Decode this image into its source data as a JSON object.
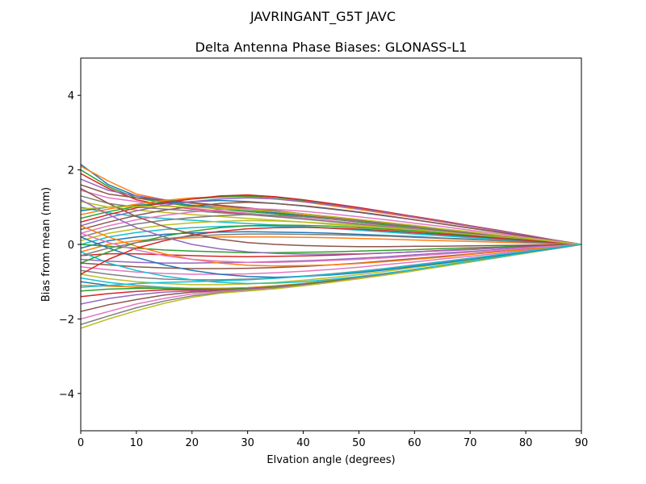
{
  "figure": {
    "suptitle": "JAVRINGANT_G5T  JAVC"
  },
  "chart_data": {
    "type": "line",
    "title": "Delta Antenna Phase Biases: GLONASS-L1",
    "xlabel": "Elvation angle (degrees)",
    "ylabel": "Bias from mean (mm)",
    "xlim": [
      0,
      90
    ],
    "ylim": [
      -5,
      5
    ],
    "xticks": [
      0,
      10,
      20,
      30,
      40,
      50,
      60,
      70,
      80,
      90
    ],
    "yticks": [
      -4,
      -2,
      0,
      2,
      4
    ],
    "xtick_labels": [
      "0",
      "10",
      "20",
      "30",
      "40",
      "50",
      "60",
      "70",
      "80",
      "90"
    ],
    "ytick_labels": [
      "−4",
      "−2",
      "0",
      "2",
      "4"
    ],
    "grid": false,
    "legend": "none",
    "colors": [
      "#1f77b4",
      "#ff7f0e",
      "#2ca02c",
      "#d62728",
      "#9467bd",
      "#8c564b",
      "#e377c2",
      "#7f7f7f",
      "#bcbd22",
      "#17becf"
    ],
    "x": [
      0,
      5,
      10,
      15,
      20,
      25,
      30,
      35,
      40,
      45,
      50,
      55,
      60,
      65,
      70,
      75,
      80,
      85,
      90
    ],
    "series": [
      {
        "values": [
          2.15,
          1.6,
          1.3,
          1.15,
          1.05,
          0.98,
          0.92,
          0.85,
          0.78,
          0.7,
          0.62,
          0.54,
          0.46,
          0.38,
          0.3,
          0.22,
          0.14,
          0.07,
          0
        ]
      },
      {
        "values": [
          2.1,
          1.7,
          1.35,
          1.2,
          1.1,
          1.02,
          0.95,
          0.88,
          0.8,
          0.72,
          0.64,
          0.56,
          0.47,
          0.39,
          0.31,
          0.23,
          0.15,
          0.07,
          0
        ]
      },
      {
        "values": [
          2.0,
          1.55,
          1.25,
          1.12,
          1.02,
          0.95,
          0.88,
          0.82,
          0.75,
          0.68,
          0.6,
          0.52,
          0.44,
          0.36,
          0.28,
          0.2,
          0.13,
          0.06,
          0
        ]
      },
      {
        "values": [
          1.9,
          1.5,
          1.2,
          1.05,
          0.95,
          0.88,
          0.82,
          0.76,
          0.7,
          0.63,
          0.56,
          0.49,
          0.42,
          0.34,
          0.27,
          0.19,
          0.12,
          0.06,
          0
        ]
      },
      {
        "values": [
          1.75,
          1.45,
          1.3,
          1.2,
          1.12,
          1.05,
          0.98,
          0.9,
          0.82,
          0.73,
          0.65,
          0.56,
          0.48,
          0.39,
          0.31,
          0.23,
          0.15,
          0.07,
          0
        ]
      },
      {
        "values": [
          1.6,
          1.35,
          1.25,
          1.18,
          1.12,
          1.05,
          0.98,
          0.9,
          0.82,
          0.74,
          0.66,
          0.57,
          0.48,
          0.4,
          0.31,
          0.23,
          0.15,
          0.07,
          0
        ]
      },
      {
        "values": [
          1.45,
          1.25,
          1.15,
          1.05,
          0.97,
          0.9,
          0.84,
          0.77,
          0.7,
          0.63,
          0.56,
          0.49,
          0.42,
          0.34,
          0.27,
          0.2,
          0.13,
          0.06,
          0
        ]
      },
      {
        "values": [
          1.3,
          1.1,
          1.0,
          0.95,
          0.9,
          0.85,
          0.8,
          0.74,
          0.68,
          0.61,
          0.54,
          0.47,
          0.4,
          0.33,
          0.26,
          0.19,
          0.12,
          0.06,
          0
        ]
      },
      {
        "values": [
          1.15,
          1.0,
          0.92,
          0.86,
          0.8,
          0.75,
          0.7,
          0.65,
          0.6,
          0.54,
          0.48,
          0.42,
          0.36,
          0.3,
          0.24,
          0.17,
          0.11,
          0.05,
          0
        ]
      },
      {
        "values": [
          1.0,
          0.85,
          0.75,
          0.7,
          0.65,
          0.6,
          0.56,
          0.52,
          0.48,
          0.43,
          0.38,
          0.33,
          0.28,
          0.23,
          0.18,
          0.13,
          0.09,
          0.04,
          0
        ]
      },
      {
        "values": [
          0.9,
          1.0,
          1.05,
          1.1,
          1.15,
          1.18,
          1.15,
          1.1,
          1.03,
          0.95,
          0.86,
          0.76,
          0.66,
          0.55,
          0.44,
          0.33,
          0.22,
          0.11,
          0
        ]
      },
      {
        "values": [
          0.8,
          0.95,
          1.08,
          1.18,
          1.25,
          1.28,
          1.28,
          1.22,
          1.14,
          1.04,
          0.94,
          0.83,
          0.72,
          0.6,
          0.48,
          0.36,
          0.24,
          0.12,
          0
        ]
      },
      {
        "values": [
          0.7,
          0.88,
          1.02,
          1.14,
          1.22,
          1.27,
          1.3,
          1.26,
          1.18,
          1.08,
          0.97,
          0.86,
          0.74,
          0.62,
          0.5,
          0.37,
          0.25,
          0.12,
          0
        ]
      },
      {
        "values": [
          0.6,
          0.8,
          0.98,
          1.12,
          1.22,
          1.3,
          1.33,
          1.28,
          1.2,
          1.1,
          0.99,
          0.87,
          0.75,
          0.63,
          0.5,
          0.38,
          0.25,
          0.12,
          0
        ]
      },
      {
        "values": [
          0.5,
          0.72,
          0.9,
          1.05,
          1.15,
          1.22,
          1.25,
          1.22,
          1.15,
          1.06,
          0.96,
          0.85,
          0.73,
          0.61,
          0.49,
          0.37,
          0.24,
          0.12,
          0
        ]
      },
      {
        "values": [
          0.4,
          0.6,
          0.78,
          0.92,
          1.02,
          1.1,
          1.13,
          1.1,
          1.04,
          0.96,
          0.87,
          0.77,
          0.66,
          0.55,
          0.44,
          0.33,
          0.22,
          0.11,
          0
        ]
      },
      {
        "values": [
          0.3,
          0.5,
          0.66,
          0.78,
          0.87,
          0.93,
          0.96,
          0.94,
          0.89,
          0.82,
          0.74,
          0.66,
          0.57,
          0.48,
          0.38,
          0.29,
          0.19,
          0.1,
          0
        ]
      },
      {
        "values": [
          0.2,
          0.4,
          0.55,
          0.65,
          0.72,
          0.77,
          0.8,
          0.78,
          0.74,
          0.68,
          0.62,
          0.55,
          0.47,
          0.4,
          0.32,
          0.24,
          0.16,
          0.08,
          0
        ]
      },
      {
        "values": [
          0.1,
          0.3,
          0.42,
          0.52,
          0.58,
          0.62,
          0.64,
          0.63,
          0.6,
          0.56,
          0.51,
          0.45,
          0.39,
          0.33,
          0.26,
          0.2,
          0.13,
          0.07,
          0
        ]
      },
      {
        "values": [
          0.0,
          0.2,
          0.32,
          0.4,
          0.45,
          0.48,
          0.5,
          0.49,
          0.47,
          0.44,
          0.4,
          0.35,
          0.3,
          0.25,
          0.2,
          0.15,
          0.1,
          0.05,
          0
        ]
      },
      {
        "values": [
          -0.1,
          0.1,
          0.2,
          0.27,
          0.31,
          0.33,
          0.34,
          0.33,
          0.32,
          0.3,
          0.27,
          0.24,
          0.21,
          0.17,
          0.14,
          0.1,
          0.07,
          0.03,
          0
        ]
      },
      {
        "values": [
          -0.2,
          0.0,
          0.1,
          0.15,
          0.18,
          0.2,
          0.2,
          0.2,
          0.19,
          0.18,
          0.16,
          0.14,
          0.12,
          0.1,
          0.08,
          0.06,
          0.04,
          0.02,
          0
        ]
      },
      {
        "values": [
          0.0,
          -0.05,
          -0.1,
          -0.15,
          -0.18,
          -0.2,
          -0.22,
          -0.22,
          -0.21,
          -0.2,
          -0.18,
          -0.16,
          -0.14,
          -0.11,
          -0.09,
          -0.07,
          -0.04,
          -0.02,
          0
        ]
      },
      {
        "values": [
          -0.3,
          -0.25,
          -0.25,
          -0.28,
          -0.3,
          -0.32,
          -0.33,
          -0.32,
          -0.31,
          -0.29,
          -0.26,
          -0.23,
          -0.2,
          -0.16,
          -0.13,
          -0.1,
          -0.06,
          -0.03,
          0
        ]
      },
      {
        "values": [
          -0.4,
          -0.45,
          -0.48,
          -0.5,
          -0.5,
          -0.49,
          -0.48,
          -0.46,
          -0.44,
          -0.41,
          -0.37,
          -0.33,
          -0.28,
          -0.23,
          -0.19,
          -0.14,
          -0.09,
          -0.05,
          0
        ]
      },
      {
        "values": [
          -0.5,
          -0.55,
          -0.6,
          -0.63,
          -0.65,
          -0.65,
          -0.64,
          -0.62,
          -0.59,
          -0.55,
          -0.5,
          -0.44,
          -0.38,
          -0.32,
          -0.26,
          -0.19,
          -0.13,
          -0.06,
          0
        ]
      },
      {
        "values": [
          -0.6,
          -0.68,
          -0.74,
          -0.78,
          -0.8,
          -0.8,
          -0.79,
          -0.76,
          -0.72,
          -0.67,
          -0.61,
          -0.54,
          -0.47,
          -0.39,
          -0.32,
          -0.24,
          -0.16,
          -0.08,
          0
        ]
      },
      {
        "values": [
          -0.7,
          -0.8,
          -0.88,
          -0.93,
          -0.95,
          -0.95,
          -0.93,
          -0.9,
          -0.85,
          -0.79,
          -0.72,
          -0.64,
          -0.55,
          -0.46,
          -0.37,
          -0.28,
          -0.19,
          -0.09,
          0
        ]
      },
      {
        "values": [
          -0.8,
          -0.92,
          -1.0,
          -1.05,
          -1.08,
          -1.08,
          -1.06,
          -1.02,
          -0.96,
          -0.89,
          -0.81,
          -0.72,
          -0.62,
          -0.52,
          -0.42,
          -0.32,
          -0.21,
          -0.1,
          0
        ]
      },
      {
        "values": [
          -0.9,
          -1.02,
          -1.1,
          -1.15,
          -1.18,
          -1.18,
          -1.16,
          -1.12,
          -1.05,
          -0.97,
          -0.88,
          -0.78,
          -0.68,
          -0.57,
          -0.46,
          -0.34,
          -0.23,
          -0.11,
          0
        ]
      },
      {
        "values": [
          -1.0,
          -1.1,
          -1.15,
          -1.18,
          -1.2,
          -1.2,
          -1.18,
          -1.13,
          -1.06,
          -0.98,
          -0.89,
          -0.79,
          -0.68,
          -0.57,
          -0.46,
          -0.35,
          -0.23,
          -0.11,
          0
        ]
      },
      {
        "values": [
          -1.1,
          -1.12,
          -1.14,
          -1.16,
          -1.18,
          -1.18,
          -1.16,
          -1.11,
          -1.05,
          -0.97,
          -0.88,
          -0.78,
          -0.68,
          -0.57,
          -0.45,
          -0.34,
          -0.23,
          -0.11,
          0
        ]
      },
      {
        "values": [
          -1.25,
          -1.2,
          -1.18,
          -1.18,
          -1.19,
          -1.2,
          -1.18,
          -1.13,
          -1.06,
          -0.98,
          -0.89,
          -0.79,
          -0.68,
          -0.57,
          -0.46,
          -0.34,
          -0.23,
          -0.11,
          0
        ]
      },
      {
        "values": [
          -1.4,
          -1.32,
          -1.26,
          -1.22,
          -1.22,
          -1.22,
          -1.2,
          -1.15,
          -1.08,
          -1.0,
          -0.9,
          -0.8,
          -0.69,
          -0.58,
          -0.46,
          -0.35,
          -0.23,
          -0.12,
          0
        ]
      },
      {
        "values": [
          -1.6,
          -1.45,
          -1.35,
          -1.28,
          -1.25,
          -1.23,
          -1.2,
          -1.15,
          -1.08,
          -1.0,
          -0.9,
          -0.8,
          -0.69,
          -0.58,
          -0.46,
          -0.35,
          -0.23,
          -0.12,
          0
        ]
      },
      {
        "values": [
          -1.8,
          -1.62,
          -1.48,
          -1.36,
          -1.28,
          -1.24,
          -1.21,
          -1.16,
          -1.09,
          -1.0,
          -0.91,
          -0.8,
          -0.69,
          -0.58,
          -0.47,
          -0.35,
          -0.23,
          -0.12,
          0
        ]
      },
      {
        "values": [
          -2.0,
          -1.8,
          -1.6,
          -1.45,
          -1.33,
          -1.26,
          -1.22,
          -1.17,
          -1.1,
          -1.01,
          -0.91,
          -0.81,
          -0.7,
          -0.58,
          -0.47,
          -0.35,
          -0.23,
          -0.12,
          0
        ]
      },
      {
        "values": [
          -2.15,
          -1.92,
          -1.7,
          -1.52,
          -1.38,
          -1.29,
          -1.24,
          -1.18,
          -1.1,
          -1.01,
          -0.92,
          -0.81,
          -0.7,
          -0.59,
          -0.47,
          -0.35,
          -0.23,
          -0.12,
          0
        ]
      },
      {
        "values": [
          -2.25,
          -2.0,
          -1.78,
          -1.58,
          -1.42,
          -1.31,
          -1.25,
          -1.19,
          -1.11,
          -1.02,
          -0.92,
          -0.82,
          -0.71,
          -0.59,
          -0.47,
          -0.35,
          -0.24,
          -0.12,
          0
        ]
      },
      {
        "values": [
          -0.2,
          -0.5,
          -0.7,
          -0.85,
          -0.95,
          -1.02,
          -1.05,
          -1.04,
          -1.0,
          -0.94,
          -0.86,
          -0.77,
          -0.67,
          -0.56,
          -0.45,
          -0.34,
          -0.22,
          -0.11,
          0
        ]
      },
      {
        "values": [
          0.2,
          -0.1,
          -0.35,
          -0.55,
          -0.7,
          -0.8,
          -0.86,
          -0.88,
          -0.86,
          -0.82,
          -0.76,
          -0.68,
          -0.59,
          -0.5,
          -0.4,
          -0.3,
          -0.2,
          -0.1,
          0
        ]
      },
      {
        "values": [
          0.5,
          0.2,
          -0.05,
          -0.25,
          -0.4,
          -0.5,
          -0.56,
          -0.58,
          -0.57,
          -0.55,
          -0.51,
          -0.46,
          -0.4,
          -0.34,
          -0.27,
          -0.2,
          -0.14,
          -0.07,
          0
        ]
      },
      {
        "values": [
          -0.5,
          -0.2,
          0.05,
          0.22,
          0.35,
          0.45,
          0.5,
          0.52,
          0.51,
          0.49,
          0.45,
          0.41,
          0.36,
          0.3,
          0.24,
          0.18,
          0.12,
          0.06,
          0
        ]
      },
      {
        "values": [
          -0.8,
          -0.4,
          -0.1,
          0.1,
          0.25,
          0.35,
          0.42,
          0.45,
          0.46,
          0.44,
          0.41,
          0.37,
          0.32,
          0.27,
          0.22,
          0.16,
          0.11,
          0.05,
          0
        ]
      },
      {
        "values": [
          1.2,
          0.8,
          0.45,
          0.2,
          0.0,
          -0.12,
          -0.2,
          -0.24,
          -0.26,
          -0.26,
          -0.25,
          -0.23,
          -0.2,
          -0.17,
          -0.14,
          -0.1,
          -0.07,
          -0.03,
          0
        ]
      },
      {
        "values": [
          1.5,
          1.1,
          0.75,
          0.48,
          0.28,
          0.14,
          0.05,
          0.0,
          -0.03,
          -0.05,
          -0.06,
          -0.06,
          -0.05,
          -0.05,
          -0.04,
          -0.03,
          -0.02,
          -0.01,
          0
        ]
      },
      {
        "values": [
          0.3,
          0.05,
          -0.15,
          -0.3,
          -0.4,
          -0.45,
          -0.48,
          -0.48,
          -0.46,
          -0.43,
          -0.4,
          -0.36,
          -0.31,
          -0.26,
          -0.21,
          -0.16,
          -0.1,
          -0.05,
          0
        ]
      },
      {
        "values": [
          -0.3,
          -0.1,
          0.05,
          0.15,
          0.22,
          0.26,
          0.28,
          0.28,
          0.27,
          0.26,
          0.24,
          0.22,
          0.19,
          0.16,
          0.13,
          0.1,
          0.06,
          0.03,
          0
        ]
      },
      {
        "values": [
          0.95,
          1.0,
          1.02,
          1.02,
          1.0,
          0.97,
          0.93,
          0.88,
          0.82,
          0.75,
          0.67,
          0.59,
          0.51,
          0.42,
          0.34,
          0.25,
          0.17,
          0.08,
          0
        ]
      },
      {
        "values": [
          -1.15,
          -1.1,
          -1.05,
          -1.02,
          -1.0,
          -0.98,
          -0.95,
          -0.91,
          -0.86,
          -0.8,
          -0.73,
          -0.65,
          -0.56,
          -0.47,
          -0.38,
          -0.28,
          -0.19,
          -0.09,
          0
        ]
      }
    ]
  }
}
